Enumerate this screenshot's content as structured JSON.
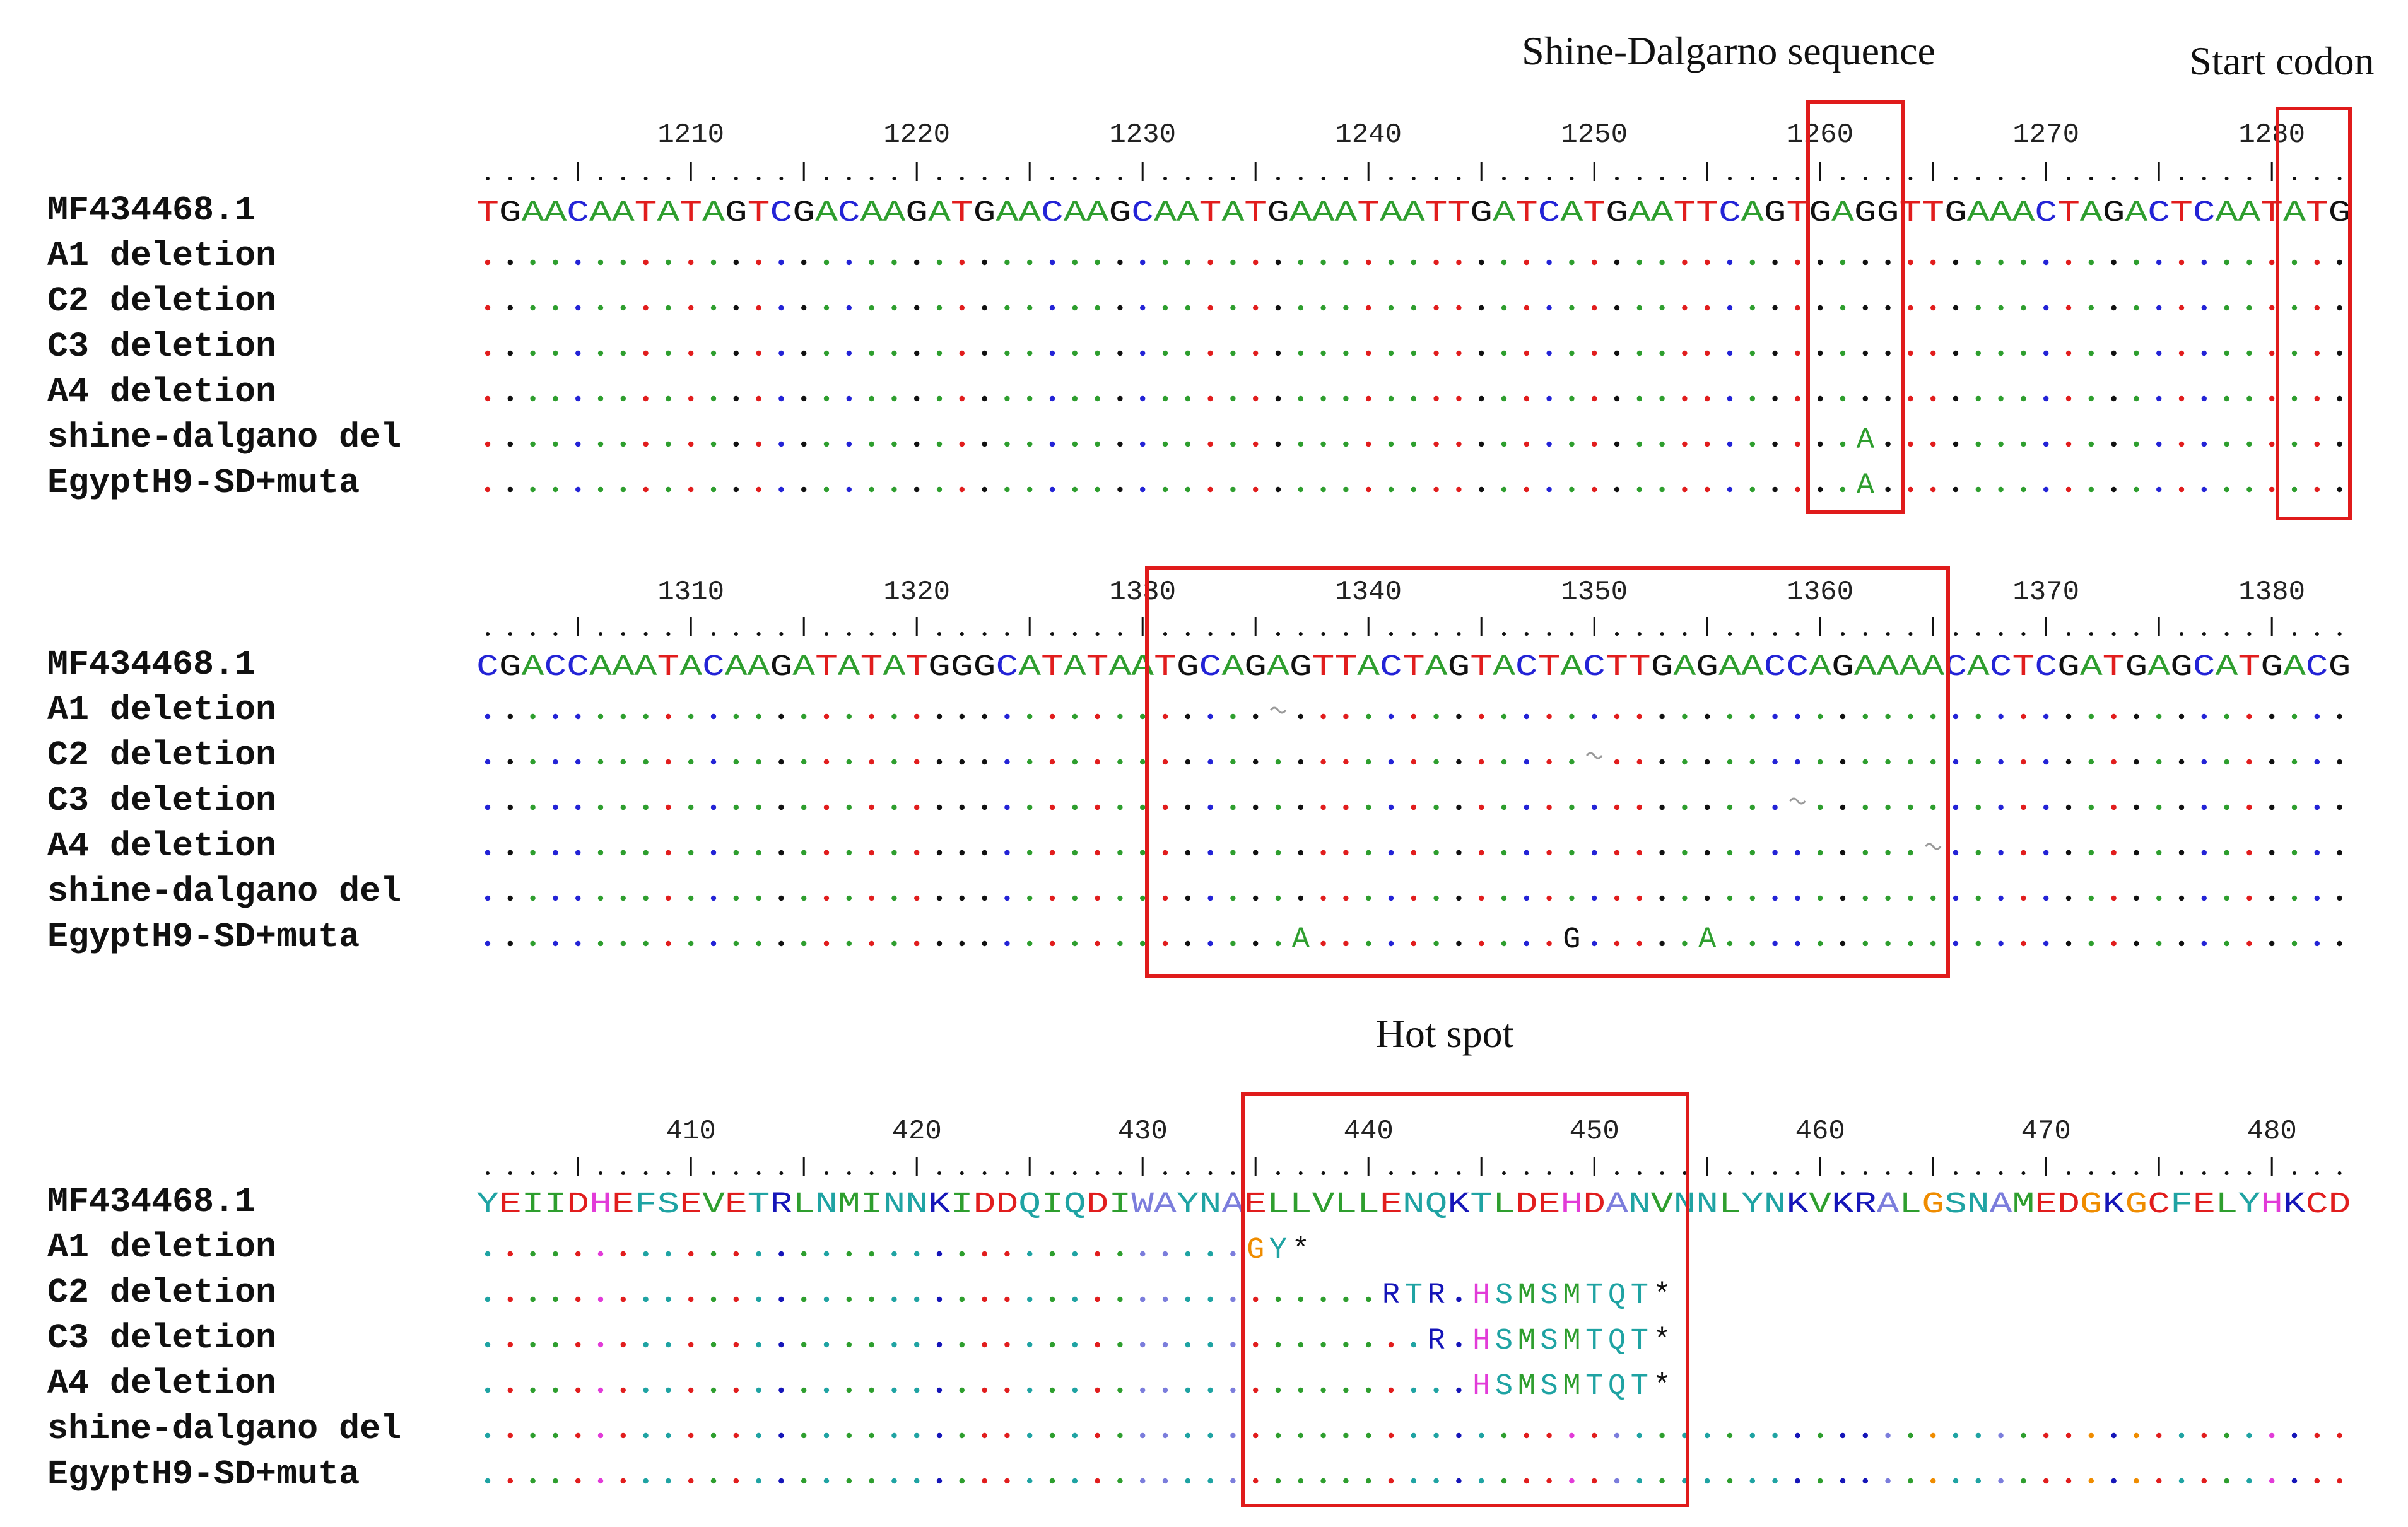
{
  "annotations": {
    "shine_dalgarno": "Shine-Dalgarno sequence",
    "start_codon": "Start codon",
    "hot_spot": "Hot spot"
  },
  "colors": {
    "A": "#2e9e2e",
    "C": "#2323d6",
    "G": "#111111",
    "T": "#e11d1d",
    "box": "#e01b1b",
    "aa": {
      "A": "#7b7ddc",
      "C": "#e11d1d",
      "D": "#e11d1d",
      "E": "#e11d1d",
      "F": "#1fa3a3",
      "G": "#ef8c00",
      "H": "#e23bd8",
      "I": "#2e9e2e",
      "K": "#1515b8",
      "L": "#2e9e2e",
      "M": "#2e9e2e",
      "N": "#1fa3a3",
      "P": "#c9a300",
      "Q": "#1fa3a3",
      "R": "#1515b8",
      "S": "#1fa3a3",
      "T": "#1fa3a3",
      "V": "#2e9e2e",
      "W": "#7b7ddc",
      "Y": "#1fa3a3",
      "*": "#111111"
    }
  },
  "blocks": [
    {
      "id": "dna-1",
      "type": "dna",
      "start": 1200,
      "tick_labels": [
        "1210",
        "1220",
        "1230",
        "1240",
        "1250",
        "1260",
        "1270",
        "1280"
      ],
      "reference": {
        "name": "MF434468.1",
        "seq": "TGAACAATATAGTCGACAAGATGAACAAGCAATATGAAATAATTGATCATGAATTCAGTGAGGTTGAAACTAGACTCAATATG"
      },
      "rows": [
        {
          "name": "A1 deletion",
          "diffs": []
        },
        {
          "name": "C2 deletion",
          "diffs": []
        },
        {
          "name": "C3 deletion",
          "diffs": []
        },
        {
          "name": "A4 deletion",
          "diffs": []
        },
        {
          "name": "shine-dalgano del",
          "diffs": [
            {
              "pos": 1262,
              "char": "A"
            }
          ]
        },
        {
          "name": "EgyptH9-SD+muta",
          "diffs": [
            {
              "pos": 1262,
              "char": "A"
            }
          ]
        }
      ]
    },
    {
      "id": "dna-2",
      "type": "dna",
      "start": 1300,
      "tick_labels": [
        "1310",
        "1320",
        "1330",
        "1340",
        "1350",
        "1360",
        "1370",
        "1380"
      ],
      "reference": {
        "name": "MF434468.1",
        "seq": "CGACCAAATACAAGATATATGGGCATATAATGCAGAGTTACTAGTACTACTTGAGAACCAGAAAACACTCGATGAGCATGACG"
      },
      "rows": [
        {
          "name": "A1 deletion",
          "diffs": [
            {
              "pos": 1336,
              "char": "~"
            }
          ]
        },
        {
          "name": "C2 deletion",
          "diffs": [
            {
              "pos": 1350,
              "char": "~"
            }
          ]
        },
        {
          "name": "C3 deletion",
          "diffs": [
            {
              "pos": 1359,
              "char": "~"
            }
          ]
        },
        {
          "name": "A4 deletion",
          "diffs": [
            {
              "pos": 1365,
              "char": "~"
            }
          ]
        },
        {
          "name": "shine-dalgano del",
          "diffs": []
        },
        {
          "name": "EgyptH9-SD+muta",
          "diffs": [
            {
              "pos": 1337,
              "char": "A"
            },
            {
              "pos": 1349,
              "char": "G"
            },
            {
              "pos": 1355,
              "char": "A"
            }
          ]
        }
      ]
    },
    {
      "id": "protein",
      "type": "protein",
      "start": 400,
      "tick_labels": [
        "410",
        "420",
        "430",
        "440",
        "450",
        "460",
        "470",
        "480"
      ],
      "reference": {
        "name": "MF434468.1",
        "seq": "YEIIDHEFSEVETRLNMINNKIDDQIQDIWAYNAELLVLLENQKTLDEHDANVNNLYNKVKRALGSNAMEDGKGCFELYHKCD"
      },
      "rows": [
        {
          "name": "A1 deletion",
          "seq": "..................................GY*"
        },
        {
          "name": "C2 deletion",
          "seq": "........................................RTR.HSMSMTQT*"
        },
        {
          "name": "C3 deletion",
          "seq": "..........................................R.HSMSMTQT*"
        },
        {
          "name": "A4 deletion",
          "seq": "............................................HSMSMTQT*"
        },
        {
          "name": "shine-dalgano del",
          "seq": "..................................................................................."
        },
        {
          "name": "EgyptH9-SD+muta",
          "seq": "..................................................................................."
        }
      ]
    }
  ]
}
